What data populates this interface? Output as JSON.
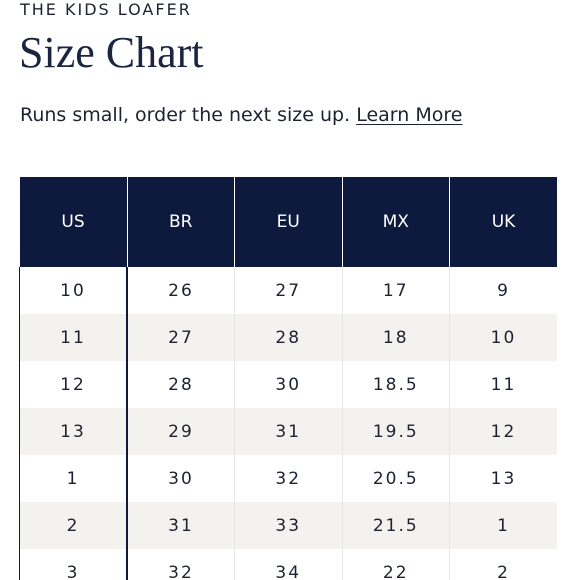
{
  "header": {
    "eyebrow": "THE KIDS LOAFER",
    "title": "Size Chart",
    "note": "Runs small, order the next size up.",
    "learn_more": "Learn More"
  },
  "table": {
    "columns": [
      "US",
      "BR",
      "EU",
      "MX",
      "UK"
    ],
    "rows": [
      [
        "10",
        "26",
        "27",
        "17",
        "9"
      ],
      [
        "11",
        "27",
        "28",
        "18",
        "10"
      ],
      [
        "12",
        "28",
        "30",
        "18.5",
        "11"
      ],
      [
        "13",
        "29",
        "31",
        "19.5",
        "12"
      ],
      [
        "1",
        "30",
        "32",
        "20.5",
        "13"
      ],
      [
        "2",
        "31",
        "33",
        "21.5",
        "1"
      ],
      [
        "3",
        "32",
        "34",
        "22",
        "2"
      ]
    ]
  }
}
